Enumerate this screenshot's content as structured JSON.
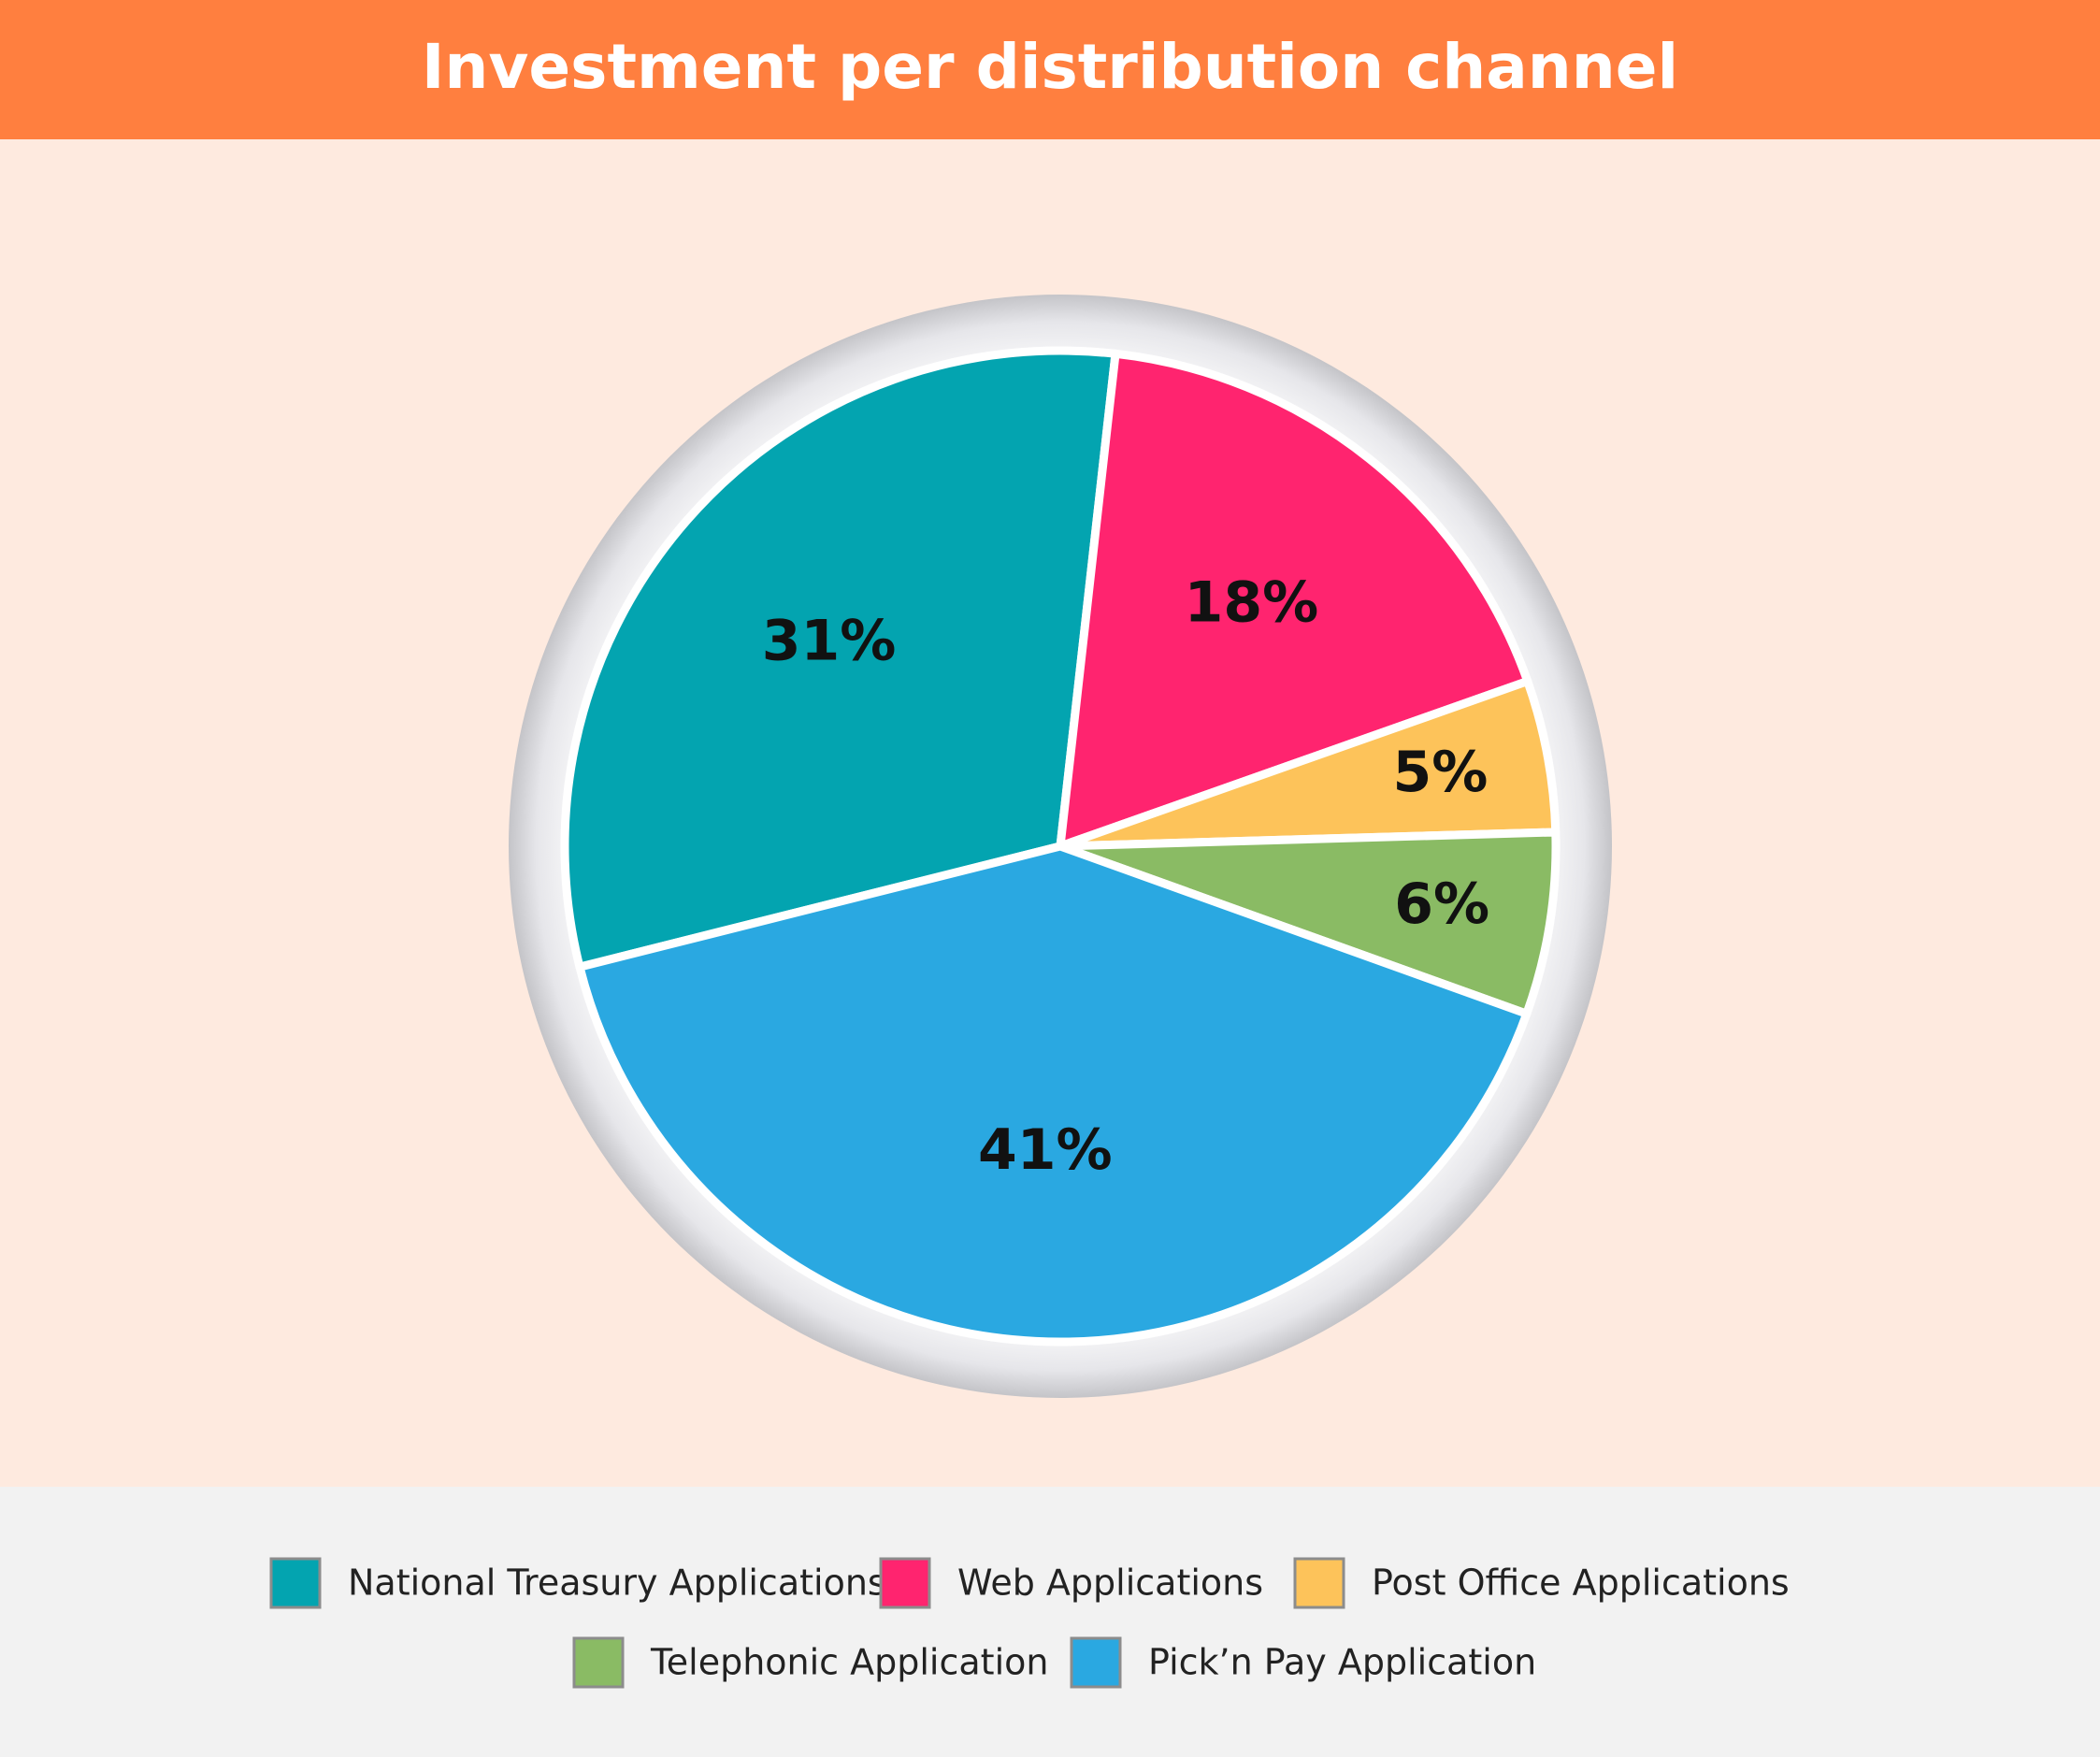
{
  "chart_data": {
    "type": "pie",
    "title": "Investment per distribution channel",
    "categories": [
      "National Treasury Applications",
      "Web Applications",
      "Post Office Applications",
      "Telephonic Application",
      "Pick’n Pay Application"
    ],
    "values": [
      31,
      18,
      5,
      6,
      41
    ],
    "value_labels": [
      "31%",
      "18%",
      "5%",
      "6%",
      "41%"
    ],
    "colors": [
      "#03a4b0",
      "#ff246f",
      "#fdc35a",
      "#8abb64",
      "#2aa8e1"
    ]
  }
}
